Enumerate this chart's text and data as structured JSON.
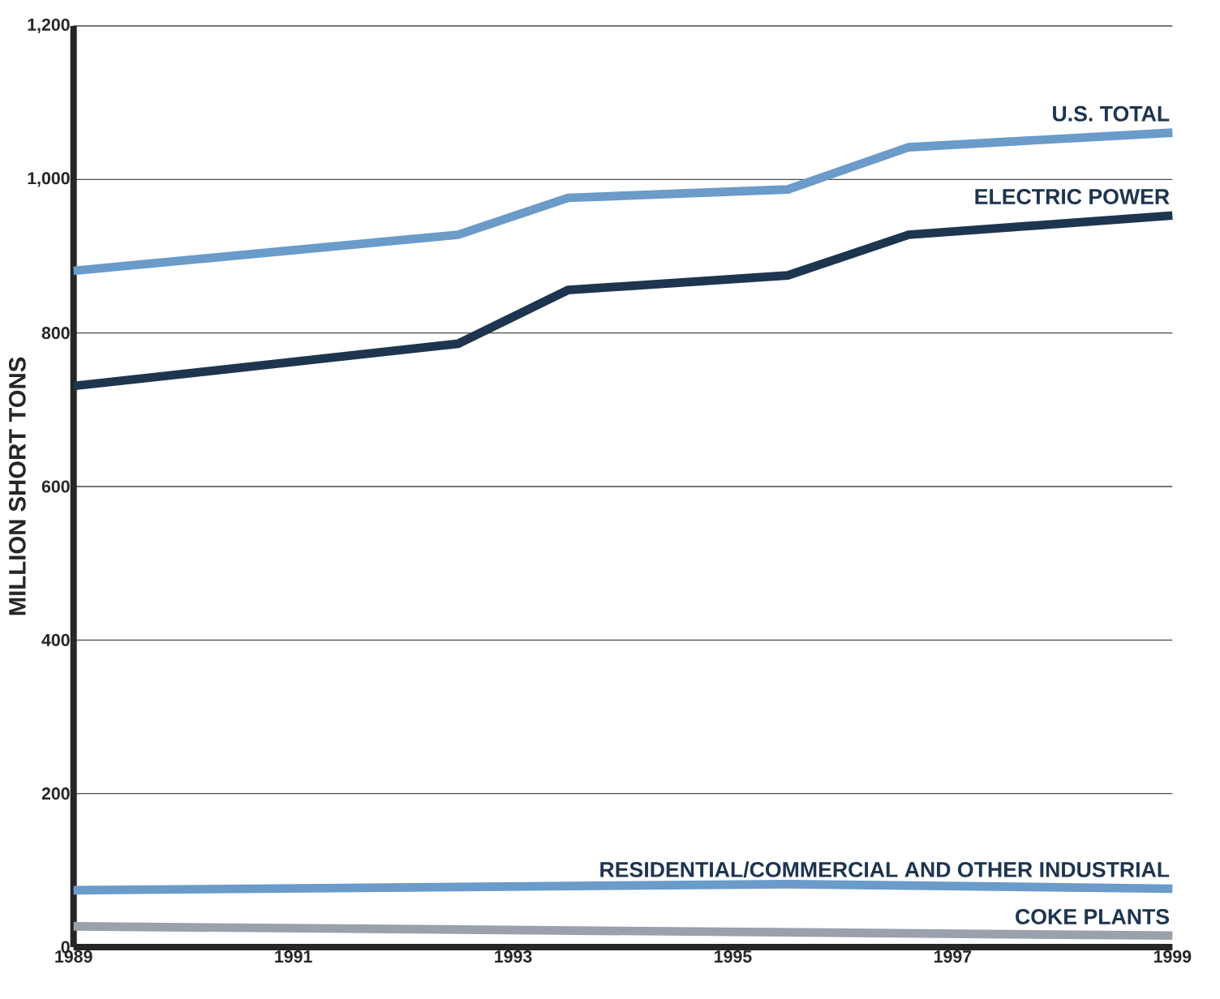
{
  "chart_data": {
    "type": "line",
    "ylabel": "MILLION SHORT TONS",
    "x": [
      1989,
      1992.5,
      1993.5,
      1995.5,
      1996.6,
      1999
    ],
    "series": [
      {
        "name": "U.S. TOTAL",
        "color": "#6a9bc9",
        "values": [
          881,
          928,
          976,
          987,
          1042,
          1061
        ]
      },
      {
        "name": "ELECTRIC POWER",
        "color": "#1e3550",
        "values": [
          731,
          786,
          856,
          875,
          928,
          953
        ]
      },
      {
        "name": "RESIDENTIAL/COMMERCIAL AND OTHER INDUSTRIAL",
        "color": "#6a9bc9",
        "x": [
          1989,
          1995.5,
          1999
        ],
        "values": [
          74,
          82,
          76
        ]
      },
      {
        "name": "COKE PLANTS",
        "color": "#9aa0ac",
        "x": [
          1989,
          1999
        ],
        "values": [
          27,
          15
        ]
      }
    ],
    "xlim": [
      1989,
      1999
    ],
    "xticks": [
      1989,
      1991,
      1993,
      1995,
      1997,
      1999
    ],
    "ylim": [
      0,
      1200
    ],
    "yticks": [
      0,
      200,
      400,
      600,
      800,
      {
        "value": 1000,
        "label": "1,000"
      },
      {
        "value": 1200,
        "label": "1,200"
      }
    ],
    "grid": "y",
    "legend": false,
    "marker": "none",
    "line_style": "solid"
  }
}
